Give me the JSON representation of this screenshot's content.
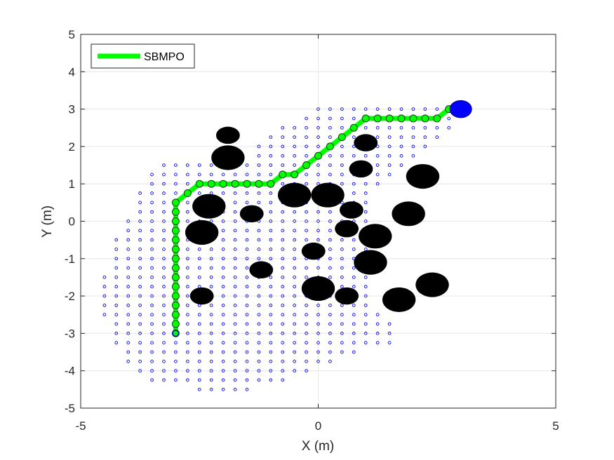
{
  "chart_data": {
    "type": "scatter",
    "title": "",
    "xlabel": "X (m)",
    "ylabel": "Y (m)",
    "xlim": [
      -5,
      5
    ],
    "ylim": [
      -5,
      5
    ],
    "xticks": [
      -5,
      0,
      5
    ],
    "yticks": [
      -5,
      -4,
      -3,
      -2,
      -1,
      0,
      1,
      2,
      3,
      4,
      5
    ],
    "xtick_labels": [
      "-5",
      "0",
      "5"
    ],
    "ytick_labels": [
      "-5",
      "-4",
      "-3",
      "-2",
      "-1",
      "0",
      "1",
      "2",
      "3",
      "4",
      "5"
    ],
    "grid": true,
    "legend": {
      "position": "top-left",
      "entries": [
        {
          "label": "SBMPO",
          "color": "#00ff00"
        }
      ]
    },
    "colors": {
      "path": "#00ff00",
      "waypoint_edge": "#1a3a1a",
      "samples": "#0000ff",
      "obstacles": "#000000",
      "goal": "#0000ff"
    },
    "start": {
      "x": -3.0,
      "y": -3.0
    },
    "goal": {
      "x": 3.0,
      "y": 3.0,
      "rx": 0.23,
      "ry": 0.23
    },
    "obstacles": [
      {
        "x": -1.9,
        "y": 2.3,
        "rx": 0.25,
        "ry": 0.23
      },
      {
        "x": -1.9,
        "y": 1.7,
        "rx": 0.35,
        "ry": 0.33
      },
      {
        "x": -2.3,
        "y": 0.4,
        "rx": 0.35,
        "ry": 0.33
      },
      {
        "x": -2.45,
        "y": -0.3,
        "rx": 0.35,
        "ry": 0.33
      },
      {
        "x": -1.4,
        "y": 0.2,
        "rx": 0.25,
        "ry": 0.23
      },
      {
        "x": -2.45,
        "y": -2.0,
        "rx": 0.25,
        "ry": 0.23
      },
      {
        "x": -1.2,
        "y": -1.3,
        "rx": 0.25,
        "ry": 0.23
      },
      {
        "x": -0.5,
        "y": 0.7,
        "rx": 0.35,
        "ry": 0.33
      },
      {
        "x": 0.2,
        "y": 0.7,
        "rx": 0.35,
        "ry": 0.33
      },
      {
        "x": 0.7,
        "y": 0.3,
        "rx": 0.25,
        "ry": 0.23
      },
      {
        "x": 0.6,
        "y": -0.2,
        "rx": 0.25,
        "ry": 0.23
      },
      {
        "x": -0.1,
        "y": -0.8,
        "rx": 0.25,
        "ry": 0.23
      },
      {
        "x": 0.0,
        "y": -1.8,
        "rx": 0.35,
        "ry": 0.33
      },
      {
        "x": 0.6,
        "y": -2.0,
        "rx": 0.25,
        "ry": 0.23
      },
      {
        "x": 0.9,
        "y": 1.4,
        "rx": 0.25,
        "ry": 0.23
      },
      {
        "x": 1.0,
        "y": 2.1,
        "rx": 0.25,
        "ry": 0.23
      },
      {
        "x": 1.2,
        "y": -0.4,
        "rx": 0.35,
        "ry": 0.33
      },
      {
        "x": 1.1,
        "y": -1.1,
        "rx": 0.35,
        "ry": 0.33
      },
      {
        "x": 2.2,
        "y": 1.2,
        "rx": 0.35,
        "ry": 0.33
      },
      {
        "x": 1.9,
        "y": 0.2,
        "rx": 0.35,
        "ry": 0.33
      },
      {
        "x": 2.4,
        "y": -1.7,
        "rx": 0.35,
        "ry": 0.33
      },
      {
        "x": 1.7,
        "y": -2.1,
        "rx": 0.35,
        "ry": 0.33
      }
    ],
    "path": [
      {
        "x": -3.0,
        "y": -3.0
      },
      {
        "x": -3.0,
        "y": -2.75
      },
      {
        "x": -3.0,
        "y": -2.5
      },
      {
        "x": -3.0,
        "y": -2.25
      },
      {
        "x": -3.0,
        "y": -2.0
      },
      {
        "x": -3.0,
        "y": -1.75
      },
      {
        "x": -3.0,
        "y": -1.5
      },
      {
        "x": -3.0,
        "y": -1.25
      },
      {
        "x": -3.0,
        "y": -1.0
      },
      {
        "x": -3.0,
        "y": -0.75
      },
      {
        "x": -3.0,
        "y": -0.5
      },
      {
        "x": -3.0,
        "y": -0.25
      },
      {
        "x": -3.0,
        "y": 0.0
      },
      {
        "x": -3.0,
        "y": 0.25
      },
      {
        "x": -3.0,
        "y": 0.5
      },
      {
        "x": -2.75,
        "y": 0.75
      },
      {
        "x": -2.5,
        "y": 1.0
      },
      {
        "x": -2.25,
        "y": 1.0
      },
      {
        "x": -2.0,
        "y": 1.0
      },
      {
        "x": -1.75,
        "y": 1.0
      },
      {
        "x": -1.5,
        "y": 1.0
      },
      {
        "x": -1.25,
        "y": 1.0
      },
      {
        "x": -1.0,
        "y": 1.0
      },
      {
        "x": -0.75,
        "y": 1.25
      },
      {
        "x": -0.5,
        "y": 1.25
      },
      {
        "x": -0.25,
        "y": 1.5
      },
      {
        "x": 0.0,
        "y": 1.75
      },
      {
        "x": 0.25,
        "y": 2.0
      },
      {
        "x": 0.5,
        "y": 2.25
      },
      {
        "x": 0.75,
        "y": 2.5
      },
      {
        "x": 1.0,
        "y": 2.75
      },
      {
        "x": 1.25,
        "y": 2.75
      },
      {
        "x": 1.5,
        "y": 2.75
      },
      {
        "x": 1.75,
        "y": 2.75
      },
      {
        "x": 2.0,
        "y": 2.75
      },
      {
        "x": 2.25,
        "y": 2.75
      },
      {
        "x": 2.5,
        "y": 2.75
      },
      {
        "x": 2.75,
        "y": 3.0
      }
    ],
    "sample_rows": [
      {
        "y": 3.0,
        "x_min": 0.0,
        "x_max": 2.75
      },
      {
        "y": 2.75,
        "x_min": -0.25,
        "x_max": 2.75
      },
      {
        "y": 2.5,
        "x_min": -0.75,
        "x_max": 2.75
      },
      {
        "y": 2.25,
        "x_min": -1.0,
        "x_max": 2.5
      },
      {
        "y": 2.0,
        "x_min": -1.25,
        "x_max": 2.25
      },
      {
        "y": 1.75,
        "x_min": -1.25,
        "x_max": 2.0
      },
      {
        "y": 1.5,
        "x_min": -3.25,
        "x_max": 1.75
      },
      {
        "y": 1.25,
        "x_min": -3.5,
        "x_max": 1.5
      },
      {
        "y": 1.0,
        "x_min": -3.5,
        "x_max": 1.25
      },
      {
        "y": 0.75,
        "x_min": -3.75,
        "x_max": 1.0
      },
      {
        "y": 0.5,
        "x_min": -3.75,
        "x_max": 1.0
      },
      {
        "y": 0.25,
        "x_min": -3.75,
        "x_max": 1.0
      },
      {
        "y": 0.0,
        "x_min": -4.0,
        "x_max": 1.0
      },
      {
        "y": -0.25,
        "x_min": -4.0,
        "x_max": 1.0
      },
      {
        "y": -0.5,
        "x_min": -4.25,
        "x_max": 1.0
      },
      {
        "y": -0.75,
        "x_min": -4.25,
        "x_max": 1.0
      },
      {
        "y": -1.0,
        "x_min": -4.25,
        "x_max": 1.0
      },
      {
        "y": -1.25,
        "x_min": -4.25,
        "x_max": 1.0
      },
      {
        "y": -1.5,
        "x_min": -4.5,
        "x_max": 1.0
      },
      {
        "y": -1.75,
        "x_min": -4.5,
        "x_max": 1.0
      },
      {
        "y": -2.0,
        "x_min": -4.5,
        "x_max": 1.0
      },
      {
        "y": -2.25,
        "x_min": -4.5,
        "x_max": 1.0
      },
      {
        "y": -2.5,
        "x_min": -4.5,
        "x_max": 1.25
      },
      {
        "y": -2.75,
        "x_min": -4.25,
        "x_max": 1.5
      },
      {
        "y": -3.0,
        "x_min": -4.25,
        "x_max": 1.5
      },
      {
        "y": -3.25,
        "x_min": -4.25,
        "x_max": 1.5
      },
      {
        "y": -3.5,
        "x_min": -4.0,
        "x_max": 0.75
      },
      {
        "y": -3.75,
        "x_min": -4.0,
        "x_max": 0.25
      },
      {
        "y": -4.0,
        "x_min": -3.75,
        "x_max": -0.25
      },
      {
        "y": -4.25,
        "x_min": -3.5,
        "x_max": -0.75
      },
      {
        "y": -4.5,
        "x_min": -2.5,
        "x_max": -1.5
      }
    ]
  }
}
